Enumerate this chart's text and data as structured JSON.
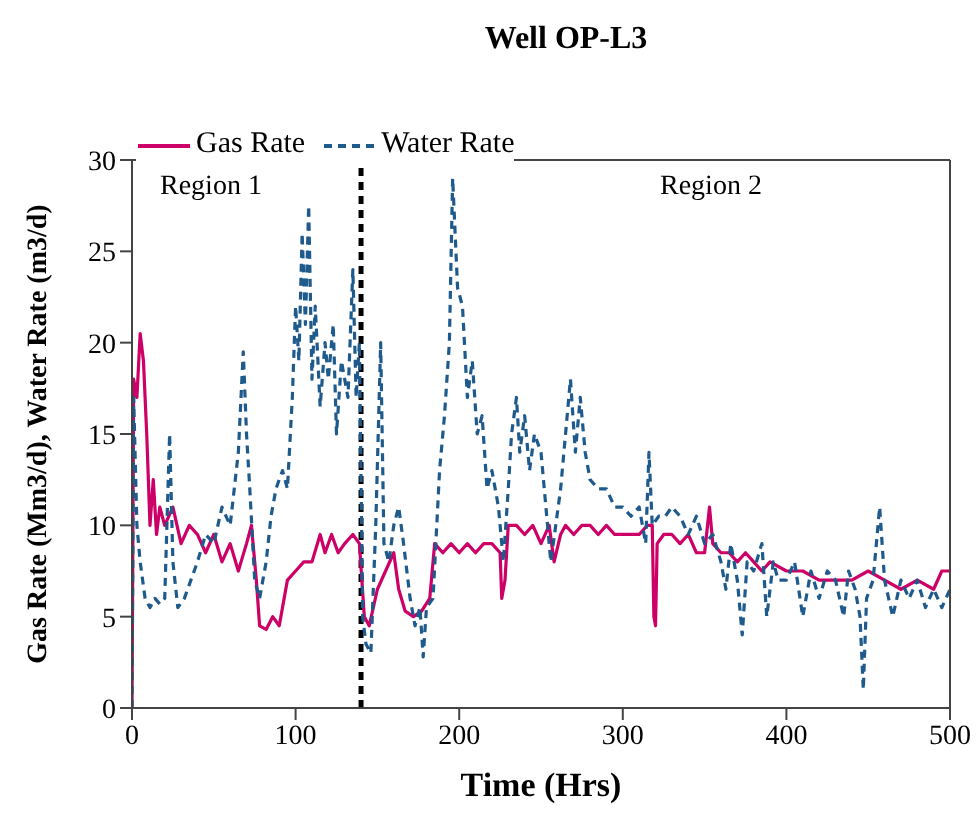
{
  "chart_data": {
    "type": "line",
    "title": "Well OP-L3",
    "xlabel": "Time (Hrs)",
    "ylabel": "Gas Rate (Mm3/d), Water Rate (m3/d)",
    "annotations": [
      "Region 1",
      "Region 2"
    ],
    "xlim": [
      0,
      500
    ],
    "xticks": [
      0,
      100,
      200,
      300,
      400,
      500
    ],
    "ylim": [
      0,
      30
    ],
    "yticks": [
      0,
      5,
      10,
      15,
      20,
      25,
      30
    ],
    "grid": false,
    "legend": "top left",
    "marker": "none",
    "ref_lines": [
      {
        "axis": "x",
        "value": 140,
        "label": null,
        "color": "#000000",
        "line_style": "dashed"
      }
    ],
    "series": [
      {
        "name": "Gas Rate",
        "color": "#cc0066",
        "line_style": "solid",
        "x": [
          0,
          1,
          3,
          5,
          7,
          9,
          11,
          13,
          15,
          17,
          20,
          25,
          30,
          35,
          40,
          45,
          50,
          55,
          60,
          65,
          70,
          73,
          76,
          78,
          82,
          86,
          90,
          95,
          100,
          105,
          110,
          115,
          118,
          122,
          126,
          130,
          135,
          139,
          142,
          145,
          150,
          155,
          160,
          163,
          167,
          172,
          177,
          182,
          185,
          190,
          195,
          200,
          205,
          210,
          215,
          220,
          225,
          226,
          228,
          230,
          235,
          240,
          245,
          250,
          255,
          258,
          262,
          265,
          270,
          275,
          280,
          285,
          290,
          295,
          300,
          305,
          310,
          315,
          318,
          319,
          320,
          321,
          325,
          330,
          335,
          340,
          345,
          350,
          353,
          355,
          360,
          365,
          370,
          375,
          380,
          385,
          390,
          400,
          410,
          420,
          430,
          440,
          450,
          460,
          470,
          480,
          490,
          495,
          500
        ],
        "values": [
          0,
          18,
          17,
          20.5,
          19,
          15,
          10,
          12.5,
          9.5,
          11,
          10,
          11,
          9,
          10,
          9.5,
          8.5,
          9.5,
          8,
          9,
          7.5,
          9,
          10,
          7,
          4.5,
          4.3,
          5,
          4.5,
          7,
          7.5,
          8,
          8,
          9.5,
          8.5,
          9.5,
          8.5,
          9,
          9.5,
          9,
          5,
          4.5,
          6.5,
          7.5,
          8.5,
          6.5,
          5.3,
          5,
          5.3,
          6,
          9,
          8.5,
          9,
          8.5,
          9,
          8.5,
          9,
          9,
          8.5,
          6,
          7,
          10,
          10,
          9.5,
          10,
          9,
          10,
          8,
          9.5,
          10,
          9.5,
          10,
          10,
          9.5,
          10,
          9.5,
          9.5,
          9.5,
          9.5,
          10,
          10,
          5,
          4.5,
          9,
          9.5,
          9.5,
          9,
          9.5,
          8.5,
          8.5,
          11,
          9,
          8.5,
          8.5,
          8,
          8.5,
          8,
          7.5,
          8,
          7.5,
          7.5,
          7,
          7,
          7,
          7.5,
          7,
          6.5,
          7,
          6.5,
          7.5,
          7.5
        ]
      },
      {
        "name": "Water Rate",
        "color": "#1f5a8c",
        "line_style": "dashed",
        "x": [
          0,
          1,
          3,
          5,
          8,
          11,
          14,
          17,
          20,
          23,
          25,
          28,
          32,
          36,
          40,
          45,
          50,
          55,
          60,
          65,
          68,
          70,
          72,
          75,
          78,
          82,
          85,
          88,
          92,
          95,
          98,
          100,
          102,
          104,
          106,
          108,
          110,
          112,
          115,
          118,
          120,
          123,
          125,
          128,
          132,
          135,
          137,
          139,
          141,
          143,
          146,
          149,
          152,
          154,
          157,
          160,
          163,
          166,
          170,
          173,
          176,
          178,
          180,
          184,
          188,
          191,
          194,
          196,
          199,
          202,
          205,
          208,
          211,
          214,
          217,
          220,
          224,
          227,
          230,
          232,
          235,
          237,
          240,
          243,
          246,
          250,
          253,
          256,
          259,
          262,
          265,
          268,
          271,
          274,
          277,
          280,
          285,
          290,
          295,
          300,
          305,
          310,
          314,
          316,
          318,
          322,
          326,
          330,
          335,
          340,
          345,
          350,
          355,
          360,
          363,
          366,
          370,
          373,
          376,
          380,
          385,
          388,
          392,
          395,
          400,
          405,
          410,
          415,
          420,
          425,
          430,
          435,
          438,
          442,
          445,
          447,
          449,
          453,
          457,
          460,
          465,
          470,
          475,
          480,
          485,
          490,
          495,
          500
        ],
        "values": [
          0,
          17,
          10,
          8,
          6,
          5.5,
          6,
          5.7,
          6,
          15,
          8,
          5.5,
          6,
          7,
          8,
          9.5,
          9,
          11,
          10,
          14,
          19.5,
          15,
          12,
          7,
          6,
          8,
          10.5,
          12,
          13,
          12,
          17,
          22,
          19,
          26,
          21,
          27.5,
          18,
          22,
          16.5,
          20,
          18,
          21,
          15,
          19,
          17,
          24,
          17,
          20,
          5,
          3.5,
          3,
          10,
          20,
          9,
          8,
          10,
          11,
          9,
          6,
          4.5,
          5.5,
          2.8,
          5.5,
          6,
          13,
          16,
          20,
          29,
          23,
          22,
          17,
          19,
          15,
          16,
          12,
          13,
          11,
          8,
          12,
          15,
          17,
          14,
          16,
          13,
          15,
          14,
          11,
          8,
          10,
          12,
          15,
          18,
          14,
          17,
          14,
          12.5,
          12,
          12,
          11,
          11,
          10.5,
          11,
          9,
          14,
          10,
          10.5,
          10.5,
          11,
          10.5,
          9.5,
          10.5,
          9,
          9.5,
          8,
          6.5,
          9,
          7,
          4,
          8,
          7.5,
          9,
          5,
          8,
          7,
          7,
          8,
          5,
          7.5,
          6,
          7.5,
          7,
          5,
          7.5,
          6.5,
          5,
          1,
          6,
          7,
          11,
          7,
          5,
          7,
          6,
          7,
          5.5,
          6.5,
          5.5,
          6.5
        ]
      }
    ]
  }
}
